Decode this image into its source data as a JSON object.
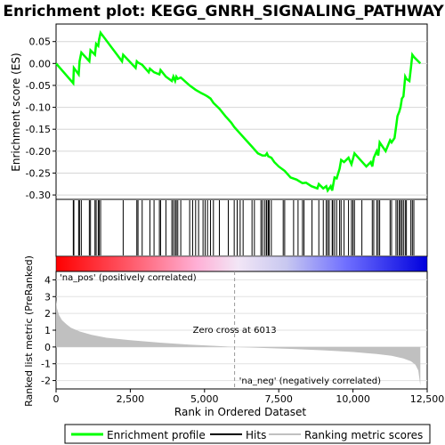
{
  "chart_data": [
    {
      "type": "line",
      "panel": "enrichment",
      "title": "Enrichment plot: KEGG_GNRH_SIGNALING_PATHWAY",
      "ylabel": "Enrichment score (ES)",
      "xlim": [
        0,
        12500
      ],
      "ylim": [
        -0.31,
        0.09
      ],
      "yticks": [
        0.05,
        0.0,
        -0.05,
        -0.1,
        -0.15,
        -0.2,
        -0.25,
        -0.3
      ],
      "ytick_labels": [
        "0.05",
        "0.00",
        "-0.05",
        "-0.10",
        "-0.15",
        "-0.20",
        "-0.25",
        "-0.30"
      ],
      "line_color": "#00ff00",
      "grid": true,
      "series": [
        {
          "name": "Enrichment profile",
          "x": [
            0,
            580,
            600,
            760,
            790,
            850,
            1120,
            1160,
            1310,
            1350,
            1420,
            1450,
            1500,
            2220,
            2260,
            2680,
            2720,
            2760,
            2900,
            3120,
            3160,
            3300,
            3480,
            3520,
            3700,
            3900,
            3950,
            4010,
            4050,
            4100,
            4200,
            4500,
            4700,
            4900,
            5020,
            5100,
            5200,
            5300,
            5500,
            5700,
            5900,
            6000,
            6200,
            6400,
            6600,
            6800,
            6950,
            7050,
            7100,
            7150,
            7250,
            7350,
            7500,
            7700,
            7900,
            8100,
            8300,
            8420,
            8600,
            8800,
            8850,
            9000,
            9100,
            9150,
            9250,
            9300,
            9380,
            9450,
            9550,
            9600,
            9700,
            9850,
            9950,
            10050,
            10250,
            10450,
            10600,
            10650,
            10700,
            10800,
            10850,
            10900,
            11100,
            11250,
            11300,
            11400,
            11450,
            11500,
            11560,
            11600,
            11650,
            11700,
            11760,
            11800,
            11900,
            11950,
            12000,
            12050,
            12270
          ],
          "y": [
            0.0,
            -0.045,
            -0.01,
            -0.025,
            0.005,
            0.025,
            0.005,
            0.03,
            0.02,
            0.045,
            0.04,
            0.055,
            0.07,
            0.005,
            0.02,
            -0.01,
            0.005,
            0.002,
            -0.003,
            -0.02,
            -0.012,
            -0.02,
            -0.025,
            -0.015,
            -0.03,
            -0.04,
            -0.03,
            -0.04,
            -0.03,
            -0.035,
            -0.032,
            -0.05,
            -0.06,
            -0.068,
            -0.072,
            -0.075,
            -0.08,
            -0.09,
            -0.103,
            -0.12,
            -0.135,
            -0.145,
            -0.16,
            -0.175,
            -0.19,
            -0.205,
            -0.21,
            -0.21,
            -0.205,
            -0.212,
            -0.215,
            -0.225,
            -0.235,
            -0.245,
            -0.26,
            -0.265,
            -0.273,
            -0.272,
            -0.28,
            -0.285,
            -0.275,
            -0.285,
            -0.28,
            -0.29,
            -0.28,
            -0.29,
            -0.26,
            -0.262,
            -0.24,
            -0.22,
            -0.225,
            -0.215,
            -0.23,
            -0.205,
            -0.22,
            -0.235,
            -0.225,
            -0.235,
            -0.215,
            -0.2,
            -0.21,
            -0.18,
            -0.2,
            -0.175,
            -0.18,
            -0.17,
            -0.145,
            -0.12,
            -0.11,
            -0.1,
            -0.08,
            -0.075,
            -0.03,
            -0.035,
            -0.04,
            -0.01,
            0.02,
            0.015,
            0.0
          ]
        }
      ],
      "hits_x": [
        580,
        600,
        760,
        790,
        850,
        1120,
        1160,
        1310,
        1350,
        1420,
        1450,
        1500,
        2260,
        2720,
        2760,
        2900,
        3160,
        3300,
        3480,
        3520,
        3700,
        3900,
        3950,
        4010,
        4050,
        4100,
        4200,
        4500,
        4600,
        4700,
        4800,
        4950,
        5020,
        5100,
        5200,
        5300,
        5500,
        5800,
        6000,
        6100,
        6200,
        6300,
        6600,
        6680,
        6900,
        6950,
        7020,
        7080,
        7100,
        7150,
        7180,
        7250,
        7650,
        7700,
        8000,
        8150,
        8300,
        8350,
        8620,
        8850,
        9000,
        9100,
        9150,
        9200,
        9300,
        9320,
        9380,
        9450,
        9550,
        9600,
        9700,
        9850,
        9950,
        10000,
        10050,
        10300,
        10650,
        10700,
        10800,
        10850,
        10900,
        11250,
        11300,
        11450,
        11500,
        11560,
        11600,
        11650,
        11700,
        11760,
        11800,
        11950,
        12000,
        12050
      ]
    },
    {
      "type": "area",
      "panel": "ranked-metric",
      "ylabel": "Ranked list metric (PreRanked)",
      "xlabel": "Rank in Ordered Dataset",
      "xlim": [
        0,
        12500
      ],
      "ylim": [
        -2.5,
        4.5
      ],
      "xticks": [
        0,
        2500,
        5000,
        7500,
        10000,
        12500
      ],
      "xtick_labels": [
        "0",
        "2,500",
        "5,000",
        "7,500",
        "10,000",
        "12,500"
      ],
      "yticks": [
        4,
        3,
        2,
        1,
        0,
        -1,
        -2
      ],
      "ytick_labels": [
        "4",
        "3",
        "2",
        "1",
        "0",
        "-1",
        "-2"
      ],
      "fill_color": "#c0c0c0",
      "series": [
        {
          "name": "Ranking metric scores",
          "x": [
            0,
            30,
            100,
            200,
            350,
            500,
            800,
            1200,
            1700,
            2500,
            3500,
            4500,
            5500,
            6013,
            7000,
            8000,
            9000,
            10000,
            10800,
            11300,
            11700,
            11950,
            12100,
            12200,
            12270
          ],
          "y": [
            2.8,
            2.3,
            1.9,
            1.6,
            1.35,
            1.15,
            0.92,
            0.72,
            0.55,
            0.4,
            0.26,
            0.14,
            0.05,
            0.0,
            -0.06,
            -0.12,
            -0.2,
            -0.3,
            -0.42,
            -0.52,
            -0.68,
            -0.85,
            -1.05,
            -1.4,
            -2.3
          ]
        }
      ],
      "zero_cross_label": "Zero cross at 6013",
      "zero_cross_x": 6013,
      "pos_label": "'na_pos' (positively correlated)",
      "neg_label": "'na_neg' (negatively correlated)",
      "pos_label_color": "#cc0000",
      "neg_label_color": "#0000cc"
    }
  ],
  "legend": {
    "items": [
      {
        "label": "Enrichment profile",
        "color": "#00ff00"
      },
      {
        "label": "Hits",
        "color": "#000000"
      },
      {
        "label": "Ranking metric scores",
        "color": "#c0c0c0"
      }
    ]
  }
}
